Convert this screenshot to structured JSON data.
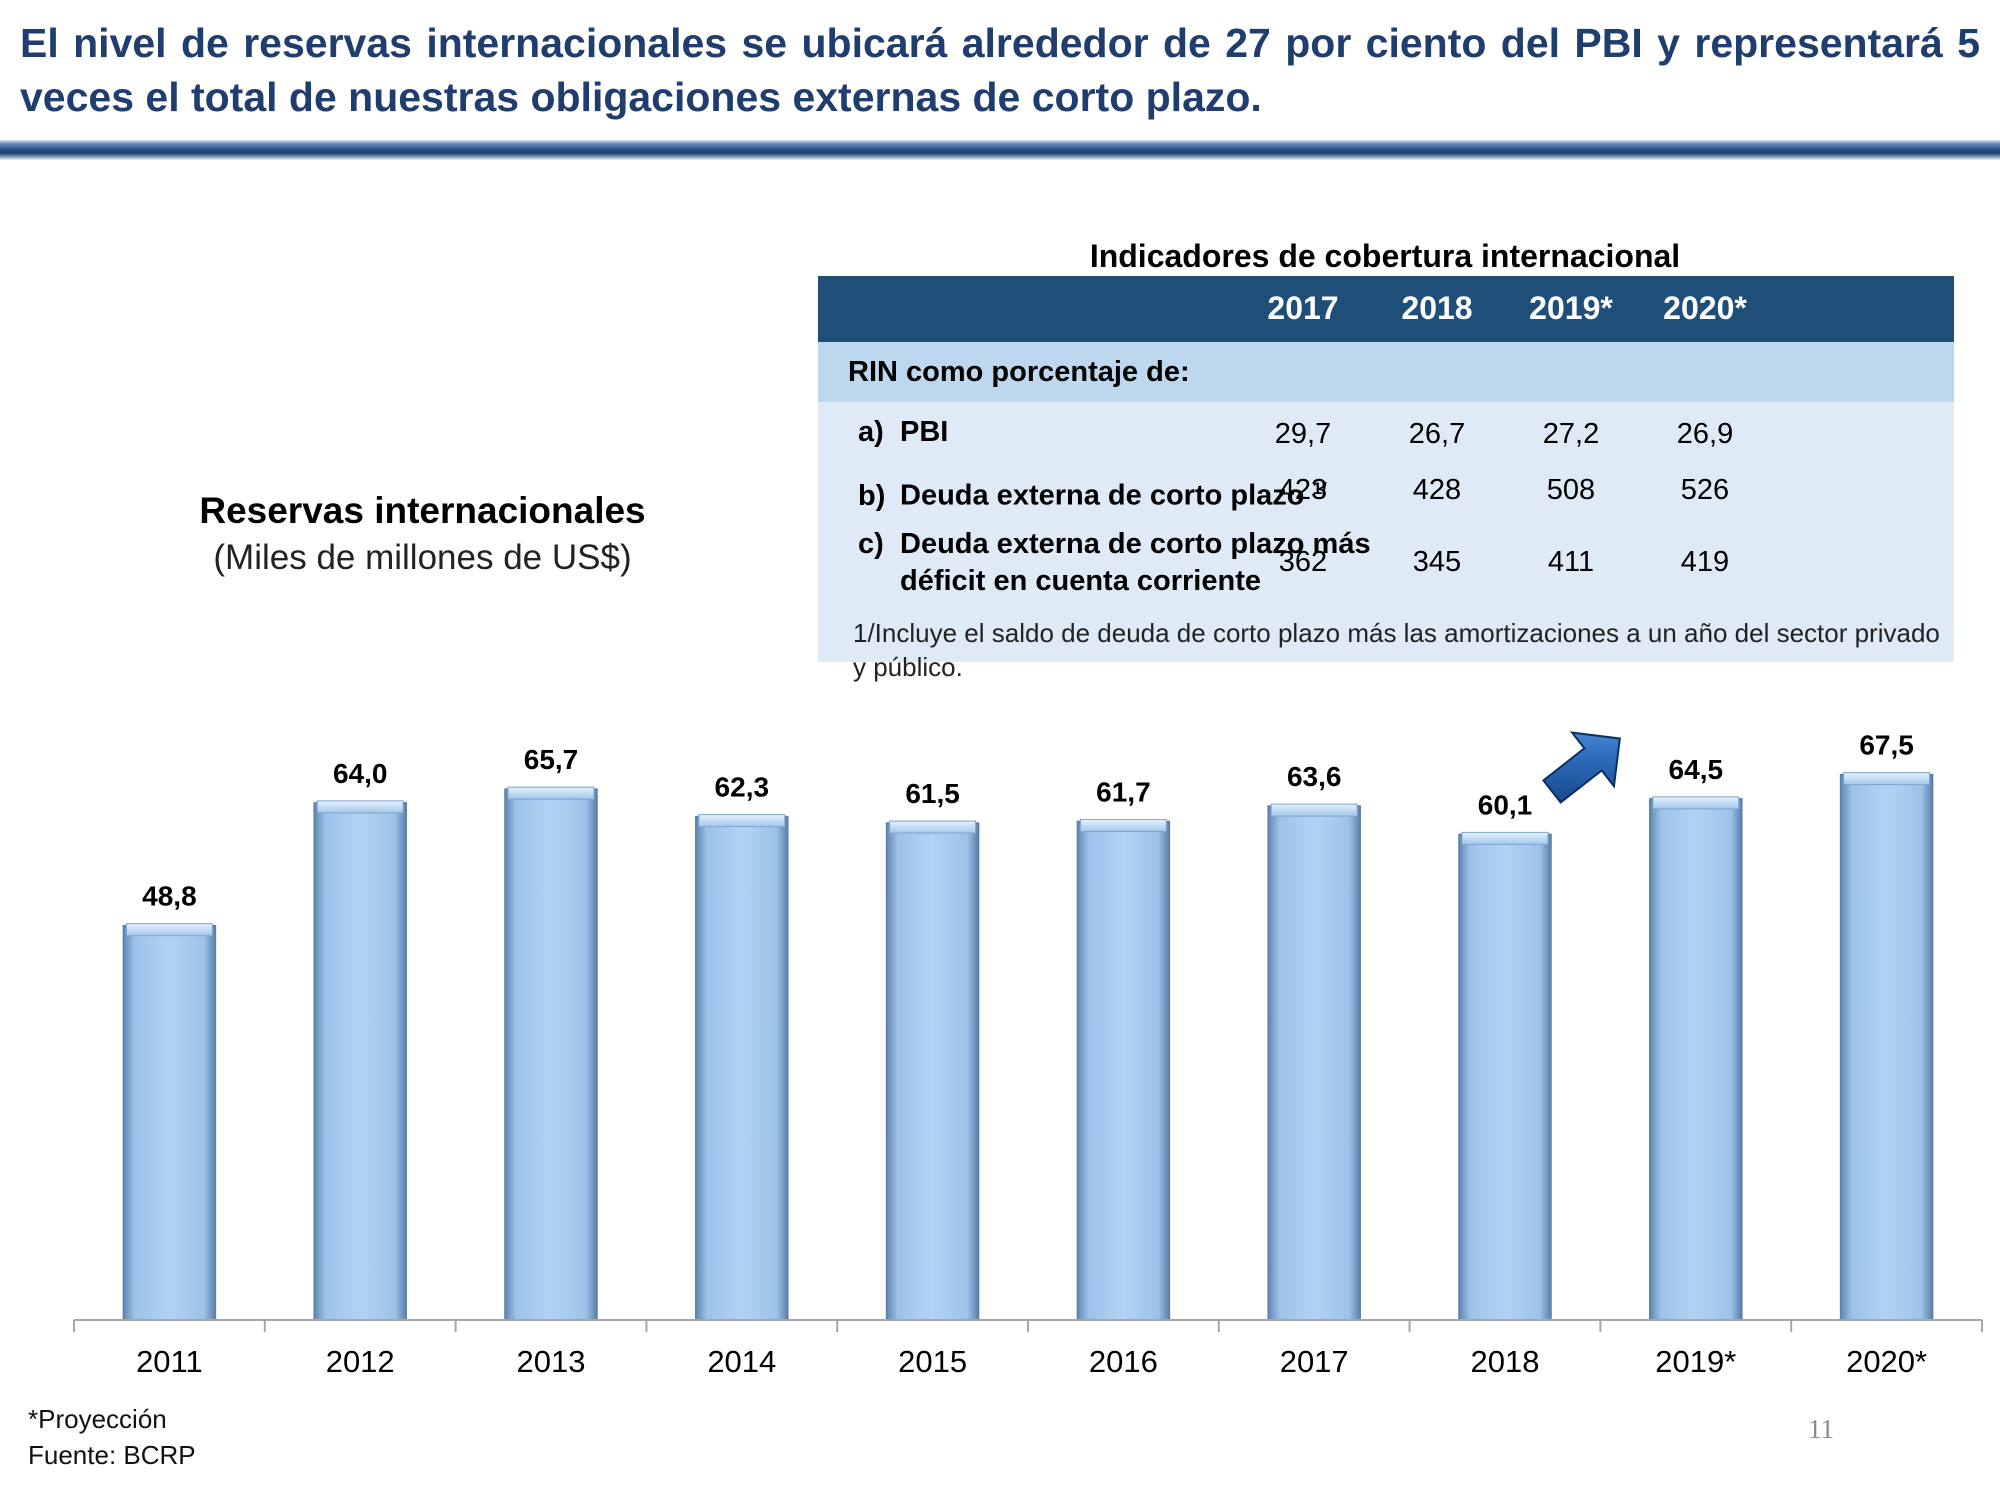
{
  "header": {
    "title": "El nivel de reservas internacionales se ubicará alrededor de 27 por ciento del PBI y representará 5 veces el total de nuestras obligaciones externas de corto plazo."
  },
  "table": {
    "title": "Indicadores de cobertura internacional",
    "years": [
      "2017",
      "2018",
      "2019*",
      "2020*"
    ],
    "section_label": "RIN como porcentaje de:",
    "rows": [
      {
        "letter": "a)",
        "label": "PBI",
        "sup": "",
        "label2": "",
        "values": [
          "29,7",
          "26,7",
          "27,2",
          "26,9"
        ]
      },
      {
        "letter": "b)",
        "label": "Deuda externa de corto plazo",
        "sup": "1/",
        "label2": "",
        "values": [
          "423",
          "428",
          "508",
          "526"
        ]
      },
      {
        "letter": "c)",
        "label": "Deuda externa de corto plazo más",
        "sup": "",
        "label2": "déficit en cuenta corriente",
        "values": [
          "362",
          "345",
          "411",
          "419"
        ]
      }
    ],
    "footnote": "1/Incluye el saldo de deuda de corto plazo más las amortizaciones a un año del sector privado y público."
  },
  "chart_data": {
    "type": "bar",
    "title": "Reservas internacionales",
    "subtitle": "(Miles de millones de US$)",
    "categories": [
      "2011",
      "2012",
      "2013",
      "2014",
      "2015",
      "2016",
      "2017",
      "2018",
      "2019*",
      "2020*"
    ],
    "values": [
      48.8,
      64.0,
      65.7,
      62.3,
      61.5,
      61.7,
      63.6,
      60.1,
      64.5,
      67.5
    ],
    "data_labels": [
      "48,8",
      "64,0",
      "65,7",
      "62,3",
      "61,5",
      "61,7",
      "63,6",
      "60,1",
      "64,5",
      "67,5"
    ],
    "ylim": [
      0,
      70
    ],
    "grid": false,
    "legend": "none",
    "annotation": "up-arrow-icon",
    "bar_color": "#a9ccef",
    "bar_edge_color": "#5b7fa6"
  },
  "notes": {
    "projection": "*Proyección",
    "source": "Fuente: BCRP"
  },
  "page_number": "11"
}
